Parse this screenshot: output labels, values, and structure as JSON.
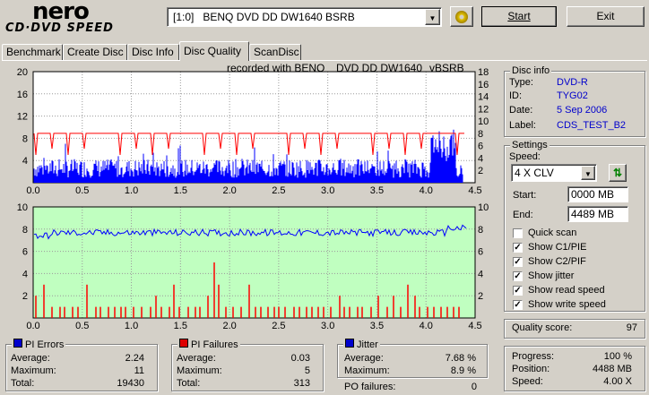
{
  "logo": {
    "top": "nero",
    "bottom": "CD·DVD SPEED"
  },
  "drive": {
    "selected": "[1:0]   BENQ DVD DD DW1640 BSRB"
  },
  "buttons": {
    "start": "Start",
    "exit": "Exit"
  },
  "tabs": [
    {
      "label": "Benchmark",
      "active": false
    },
    {
      "label": "Create Disc",
      "active": false
    },
    {
      "label": "Disc Info",
      "active": false
    },
    {
      "label": "Disc Quality",
      "active": true
    },
    {
      "label": "ScanDisc",
      "active": false
    }
  ],
  "chart_header": {
    "recorded_with": "recorded with BENQ",
    "model": "DVD DD DW1640",
    "firmware": "vBSRB"
  },
  "chart_data": [
    {
      "type": "bar",
      "name": "PI errors / read speed",
      "x_ticks": [
        "0.0",
        "0.5",
        "1.0",
        "1.5",
        "2.0",
        "2.5",
        "3.0",
        "3.5",
        "4.0",
        "4.5"
      ],
      "y_left_ticks": [
        "20",
        "16",
        "12",
        "8",
        "4"
      ],
      "y_right_ticks": [
        "18",
        "16",
        "14",
        "12",
        "10",
        "8",
        "6",
        "4",
        "2"
      ],
      "xlim": [
        0,
        4.5
      ],
      "ylim_left": [
        0,
        20
      ],
      "ylim_right": [
        0,
        18
      ],
      "series": [
        {
          "name": "PI errors",
          "color": "#0000ff",
          "x_range": [
            0,
            4.38
          ],
          "typical_value": 2.24,
          "max_value": 11
        },
        {
          "name": "read speed",
          "color": "#ff0000",
          "typical_value": 8
        }
      ]
    },
    {
      "type": "bar",
      "name": "PI failures / jitter",
      "x_ticks": [
        "0.0",
        "0.5",
        "1.0",
        "1.5",
        "2.0",
        "2.5",
        "3.0",
        "3.5",
        "4.0",
        "4.5"
      ],
      "y_left_ticks": [
        "10",
        "8",
        "6",
        "4",
        "2"
      ],
      "y_right_ticks": [
        "10",
        "8",
        "6",
        "4",
        "2"
      ],
      "xlim": [
        0,
        4.5
      ],
      "ylim": [
        0,
        10
      ],
      "background": "#c0ffc0",
      "series": [
        {
          "name": "PI failures",
          "color": "#ff0000",
          "max_value": 5
        },
        {
          "name": "jitter",
          "color": "#0000ff",
          "typical_value": 7.68
        }
      ]
    }
  ],
  "disc_info": {
    "title": "Disc info",
    "rows": [
      {
        "label": "Type:",
        "value": "DVD-R"
      },
      {
        "label": "ID:",
        "value": "TYG02"
      },
      {
        "label": "Date:",
        "value": "5 Sep 2006"
      },
      {
        "label": "Label:",
        "value": "CDS_TEST_B2"
      }
    ]
  },
  "settings": {
    "title": "Settings",
    "speed_label": "Speed:",
    "speed_value": "4 X CLV",
    "start_label": "Start:",
    "start_value": "0000 MB",
    "end_label": "End:",
    "end_value": "4489 MB",
    "checks": [
      {
        "label": "Quick scan",
        "checked": false
      },
      {
        "label": "Show C1/PIE",
        "checked": true
      },
      {
        "label": "Show C2/PIF",
        "checked": true
      },
      {
        "label": "Show jitter",
        "checked": true
      },
      {
        "label": "Show read speed",
        "checked": true
      },
      {
        "label": "Show write speed",
        "checked": true
      }
    ]
  },
  "quality": {
    "label": "Quality score:",
    "value": "97"
  },
  "progress": {
    "rows": [
      {
        "label": "Progress:",
        "value": "100 %"
      },
      {
        "label": "Position:",
        "value": "4488 MB"
      },
      {
        "label": "Speed:",
        "value": "4.00 X"
      }
    ]
  },
  "pi_errors": {
    "title": "PI Errors",
    "color": "#0000cc",
    "rows": [
      {
        "label": "Average:",
        "value": "2.24"
      },
      {
        "label": "Maximum:",
        "value": "11"
      },
      {
        "label": "Total:",
        "value": "19430"
      }
    ]
  },
  "pi_failures": {
    "title": "PI Failures",
    "color": "#dd0000",
    "rows": [
      {
        "label": "Average:",
        "value": "0.03"
      },
      {
        "label": "Maximum:",
        "value": "5"
      },
      {
        "label": "Total:",
        "value": "313"
      }
    ]
  },
  "jitter": {
    "title": "Jitter",
    "color": "#0000cc",
    "rows": [
      {
        "label": "Average:",
        "value": "7.68 %"
      },
      {
        "label": "Maximum:",
        "value": "8.9 %"
      }
    ]
  },
  "po_failures": {
    "label": "PO failures:",
    "value": "0"
  }
}
